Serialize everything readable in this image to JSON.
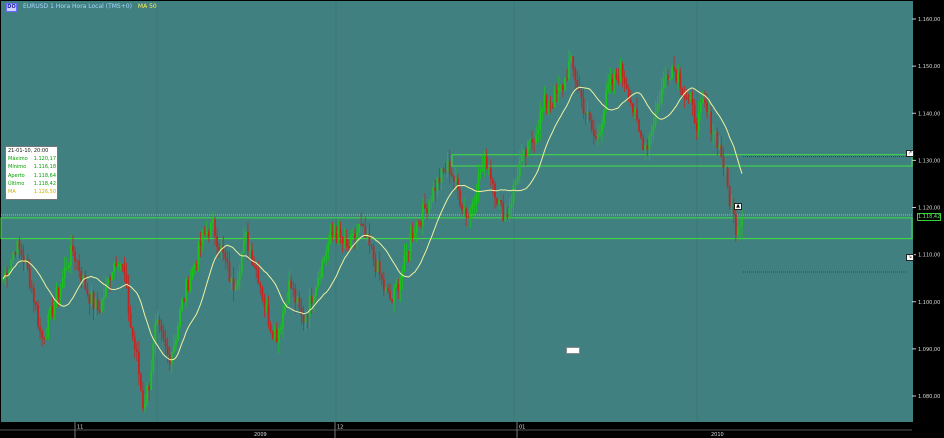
{
  "header": {
    "logo": "DO",
    "title": "EURUSD 1 Hora Hora Local (TMS+0)",
    "indicator": "MA 50"
  },
  "info_box": {
    "date": "21-01-10, 20:00",
    "rows": [
      {
        "label": "Máximo",
        "value": "1.120,17"
      },
      {
        "label": "Mínimo",
        "value": "1.116,18"
      },
      {
        "label": "Aperto",
        "value": "1.118,64"
      },
      {
        "label": "Último",
        "value": "1.118,42"
      },
      {
        "label": "MA",
        "value": "1.126,50"
      }
    ]
  },
  "price_tag": "1.118,42",
  "colors": {
    "background": "#418080",
    "up_candle": "#19c419",
    "down_candle": "#c8231e",
    "ma_line": "#f1f1a0",
    "zone_border": "#3fe03f",
    "axis_bg": "#000000"
  },
  "chart_data": {
    "type": "candlestick",
    "instrument": "EURUSD 1 Hora",
    "ylim": [
      1.08,
      1.16
    ],
    "y_ticks": [
      "1.160,00",
      "1.150,00",
      "1.140,00",
      "1.130,00",
      "1.120,00",
      "1.110,00",
      "1.100,00",
      "1.090,00",
      "1.080,00"
    ],
    "x_ticks": [
      "11",
      "12",
      "01"
    ],
    "x_year_labels": [
      "2009",
      "2010"
    ],
    "last_price": 1.11842,
    "ma_period": 50,
    "zones": [
      {
        "top": 1.1312,
        "bottom": 1.1288
      },
      {
        "top": 1.1178,
        "bottom": 1.1134
      }
    ],
    "reference_lines": [
      1.1308,
      1.1063,
      1.1163
    ],
    "close_path": [
      1.1049,
      1.108,
      1.112,
      1.11,
      1.106,
      1.1,
      1.092,
      1.095,
      1.1,
      1.103,
      1.108,
      1.111,
      1.107,
      1.103,
      1.1,
      1.098,
      1.102,
      1.107,
      1.11,
      1.106,
      1.095,
      1.088,
      1.078,
      1.083,
      1.095,
      1.092,
      1.088,
      1.092,
      1.099,
      1.104,
      1.108,
      1.112,
      1.115,
      1.116,
      1.112,
      1.108,
      1.103,
      1.107,
      1.114,
      1.11,
      1.106,
      1.1,
      1.095,
      1.093,
      1.098,
      1.104,
      1.1,
      1.096,
      1.099,
      1.104,
      1.108,
      1.112,
      1.115,
      1.113,
      1.111,
      1.113,
      1.116,
      1.113,
      1.11,
      1.106,
      1.102,
      1.1,
      1.104,
      1.108,
      1.114,
      1.117,
      1.119,
      1.122,
      1.125,
      1.127,
      1.129,
      1.125,
      1.121,
      1.118,
      1.123,
      1.128,
      1.13,
      1.125,
      1.12,
      1.118,
      1.123,
      1.129,
      1.131,
      1.134,
      1.138,
      1.142,
      1.142,
      1.144,
      1.146,
      1.151,
      1.147,
      1.142,
      1.138,
      1.134,
      1.139,
      1.145,
      1.147,
      1.149,
      1.146,
      1.14,
      1.135,
      1.133,
      1.138,
      1.143,
      1.148,
      1.15,
      1.148,
      1.144,
      1.141,
      1.138,
      1.142,
      1.138,
      1.135,
      1.13,
      1.122,
      1.116,
      1.1184
    ]
  }
}
